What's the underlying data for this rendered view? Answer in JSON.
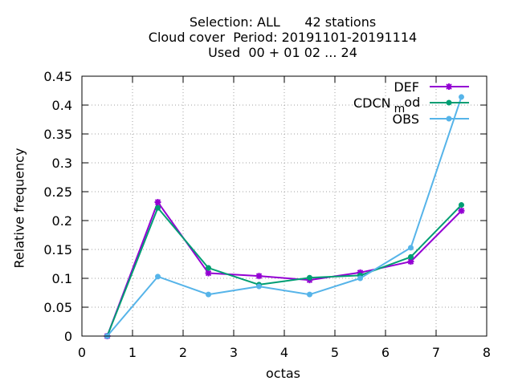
{
  "chart_data": {
    "type": "line",
    "title_lines": [
      "Selection: ALL      42 stations",
      "Cloud cover  Period: 20191101-20191114",
      "Used  00 + 01 02 ... 24"
    ],
    "xlabel": "octas",
    "ylabel": "Relative frequency",
    "xlim": [
      0,
      8
    ],
    "ylim": [
      0,
      0.45
    ],
    "xticks": [
      "0",
      "1",
      "2",
      "3",
      "4",
      "5",
      "6",
      "7",
      "8"
    ],
    "yticks": [
      "0",
      "0.05",
      "0.1",
      "0.15",
      "0.2",
      "0.25",
      "0.3",
      "0.35",
      "0.4",
      "0.45"
    ],
    "grid": true,
    "legend_position": "top-right",
    "x": [
      0.5,
      1.5,
      2.5,
      3.5,
      4.5,
      5.5,
      6.5,
      7.5
    ],
    "series": [
      {
        "name": "DEF",
        "values": [
          0.0,
          0.232,
          0.109,
          0.104,
          0.097,
          0.11,
          0.129,
          0.217
        ],
        "color": "#9400d3",
        "marker": "star"
      },
      {
        "name": "CDCN",
        "name_suffix_sub": "m",
        "name_suffix": "od",
        "values": [
          0.0,
          0.222,
          0.118,
          0.089,
          0.101,
          0.105,
          0.137,
          0.227
        ],
        "color": "#009e73",
        "marker": "circle"
      },
      {
        "name": "OBS",
        "values": [
          0.0,
          0.103,
          0.072,
          0.086,
          0.072,
          0.1,
          0.153,
          0.414
        ],
        "color": "#56b4e9",
        "marker": "circle"
      }
    ]
  }
}
